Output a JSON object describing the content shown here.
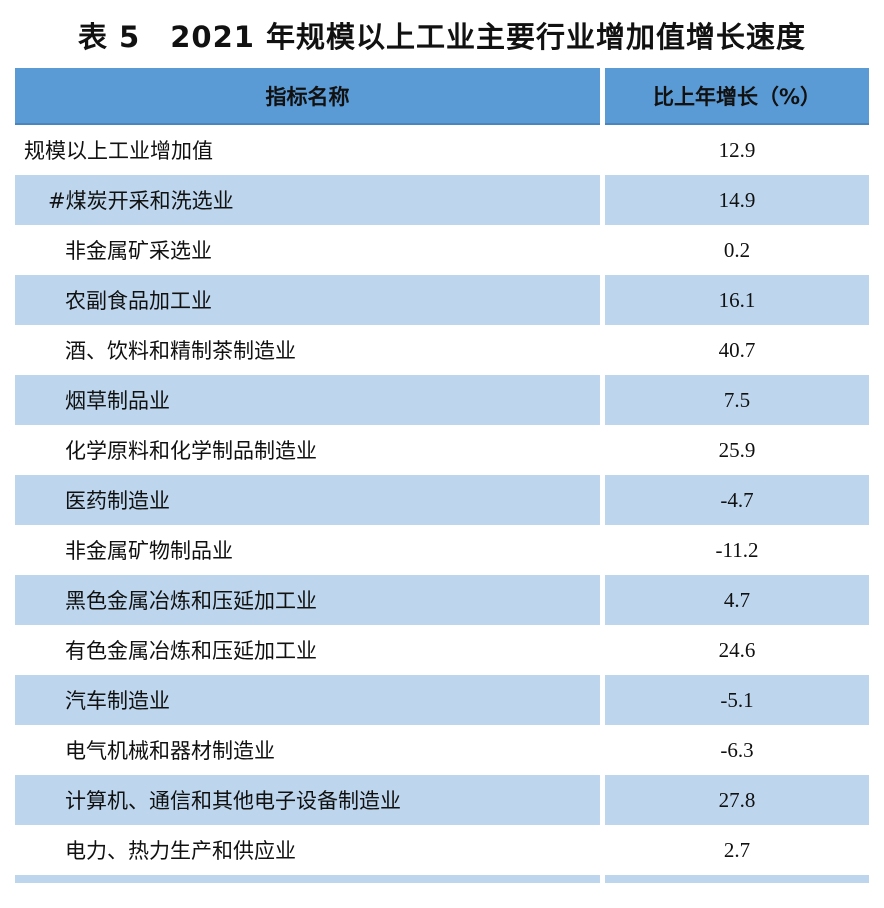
{
  "title": "表 5　2021 年规模以上工业主要行业增加值增长速度",
  "header": {
    "col_name": "指标名称",
    "col_growth": "比上年增长（%）"
  },
  "rows": [
    {
      "name": "规模以上工业增加值",
      "value": "12.9"
    },
    {
      "name": "#煤炭开采和洗选业",
      "value": "14.9"
    },
    {
      "name": "非金属矿采选业",
      "value": "0.2"
    },
    {
      "name": "农副食品加工业",
      "value": "16.1"
    },
    {
      "name": "酒、饮料和精制茶制造业",
      "value": "40.7"
    },
    {
      "name": "烟草制品业",
      "value": "7.5"
    },
    {
      "name": "化学原料和化学制品制造业",
      "value": "25.9"
    },
    {
      "name": "医药制造业",
      "value": "-4.7"
    },
    {
      "name": "非金属矿物制品业",
      "value": "-11.2"
    },
    {
      "name": "黑色金属冶炼和压延加工业",
      "value": "4.7"
    },
    {
      "name": "有色金属冶炼和压延加工业",
      "value": "24.6"
    },
    {
      "name": "汽车制造业",
      "value": "-5.1"
    },
    {
      "name": "电气机械和器材制造业",
      "value": "-6.3"
    },
    {
      "name": "计算机、通信和其他电子设备制造业",
      "value": "27.8"
    },
    {
      "name": "电力、热力生产和供应业",
      "value": "2.7"
    }
  ],
  "colors": {
    "header_bg": "#5b9bd5",
    "stripe_bg": "#bdd6ee"
  }
}
